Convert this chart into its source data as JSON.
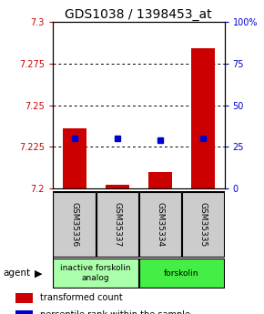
{
  "title": "GDS1038 / 1398453_at",
  "samples": [
    "GSM35336",
    "GSM35337",
    "GSM35334",
    "GSM35335"
  ],
  "red_values": [
    7.236,
    7.202,
    7.21,
    7.284
  ],
  "blue_percentiles": [
    30,
    30,
    29,
    30
  ],
  "ylim_left": [
    7.2,
    7.3
  ],
  "ylim_right": [
    0,
    100
  ],
  "yticks_left": [
    7.2,
    7.225,
    7.25,
    7.275,
    7.3
  ],
  "yticks_right": [
    0,
    25,
    50,
    75,
    100
  ],
  "ytick_labels_left": [
    "7.2",
    "7.225",
    "7.25",
    "7.275",
    "7.3"
  ],
  "ytick_labels_right": [
    "0",
    "25",
    "50",
    "75",
    "100%"
  ],
  "groups": [
    {
      "label": "inactive forskolin\nanalog",
      "samples": [
        0,
        1
      ],
      "color": "#aaffaa"
    },
    {
      "label": "forskolin",
      "samples": [
        2,
        3
      ],
      "color": "#44ee44"
    }
  ],
  "bar_base": 7.2,
  "bar_width": 0.55,
  "red_color": "#cc0000",
  "blue_color": "#0000cc",
  "blue_marker_size": 5,
  "title_fontsize": 10,
  "tick_fontsize": 7,
  "legend_fontsize": 7
}
